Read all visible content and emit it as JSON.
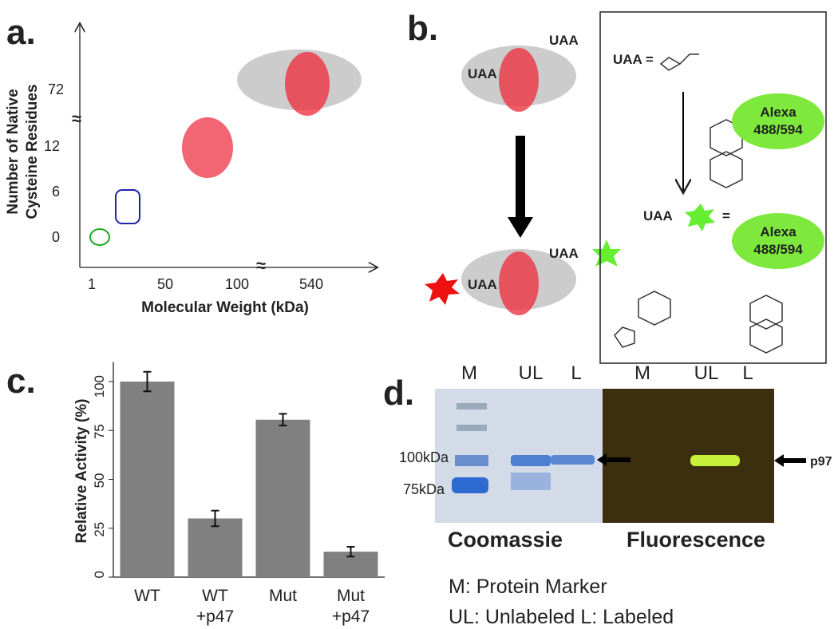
{
  "panel_a": {
    "label": "a.",
    "y_title": [
      "Number of Native",
      "Cysteine Residues"
    ],
    "y_labels": [
      "0",
      "6",
      "12",
      "72"
    ],
    "x_labels": [
      "1",
      "50",
      "100",
      "540"
    ],
    "x_title": "Molecular Weight (kDa)"
  },
  "panel_b": {
    "label": "b.",
    "uaa_top_right": "UAA",
    "uaa_top_left": "UAA",
    "uaa_bottom_right": "UAA",
    "uaa_bottom_left": "UAA",
    "box_uaa": "UAA =",
    "dye_1": [
      "Alexa",
      "488/594"
    ],
    "box_uaa_2": "UAA",
    "equals": "=",
    "dye_2": [
      "Alexa",
      "488/594"
    ]
  },
  "chart_data": {
    "type": "bar",
    "label": "c.",
    "y_title": "Relative Activity (%)",
    "categories": [
      [
        "WT"
      ],
      [
        "WT",
        "+p47"
      ],
      [
        "Mut"
      ],
      [
        "Mut",
        "+p47"
      ]
    ],
    "values": [
      100,
      30,
      80.5,
      13
    ],
    "errors": [
      5,
      4,
      3,
      2.5
    ],
    "color": "#808080",
    "ylim": [
      0,
      110
    ],
    "yticks": [
      0,
      25,
      50,
      75,
      100
    ]
  },
  "panel_d": {
    "label": "d.",
    "lanes_left": [
      "M",
      "UL",
      "L"
    ],
    "lanes_right": [
      "M",
      "UL",
      "L"
    ],
    "marker_100": "100kDa",
    "marker_75": "75kDa",
    "band_label": "p97",
    "stain_left": "Coomassie",
    "stain_right": "Fluorescence",
    "legend_1": "M: Protein Marker",
    "legend_2": "UL: Unlabeled L: Labeled"
  }
}
